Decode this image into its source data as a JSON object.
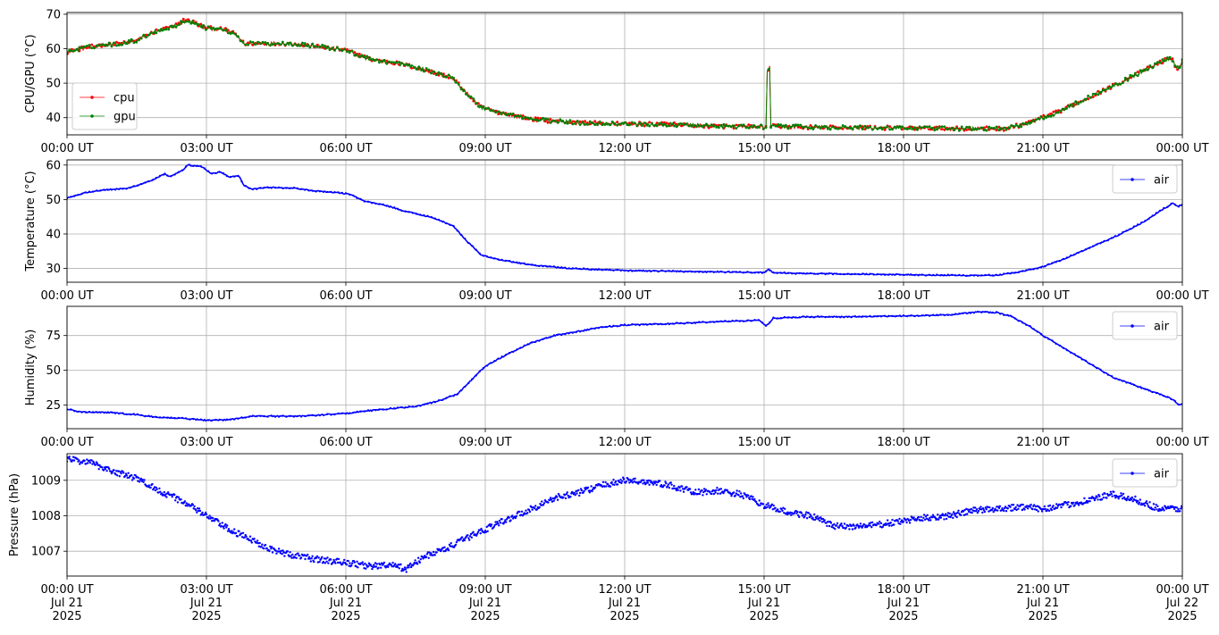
{
  "chart_data": [
    {
      "type": "line",
      "ylabel": "CPU/GPU (°C)",
      "xlim": [
        0,
        24
      ],
      "ylim": [
        35,
        70.5
      ],
      "yticks": [
        40,
        50,
        60,
        70
      ],
      "grid": true,
      "legend": "bottom-left",
      "x_tick_labels": [
        "00:00 UT",
        "03:00 UT",
        "06:00 UT",
        "09:00 UT",
        "12:00 UT",
        "15:00 UT",
        "18:00 UT",
        "21:00 UT",
        "00:00 UT"
      ],
      "series": [
        {
          "name": "cpu",
          "color": "#ff0000",
          "marker": "dot",
          "noise": 0.6,
          "spike": [
            15.05,
            15.12,
            55.5
          ],
          "points": [
            [
              0,
              59
            ],
            [
              0.3,
              60
            ],
            [
              0.7,
              61
            ],
            [
              1.2,
              61.5
            ],
            [
              1.5,
              62.5
            ],
            [
              1.9,
              65
            ],
            [
              2.3,
              66.5
            ],
            [
              2.55,
              68.5
            ],
            [
              2.75,
              67.5
            ],
            [
              3.0,
              66
            ],
            [
              3.4,
              65.5
            ],
            [
              3.65,
              64
            ],
            [
              3.8,
              61.5
            ],
            [
              4.2,
              61.5
            ],
            [
              4.8,
              61.5
            ],
            [
              5.5,
              60.5
            ],
            [
              6.0,
              59.5
            ],
            [
              6.5,
              57
            ],
            [
              7.2,
              55.5
            ],
            [
              7.8,
              53.5
            ],
            [
              8.3,
              51.5
            ],
            [
              8.6,
              47
            ],
            [
              8.9,
              43
            ],
            [
              9.3,
              41.5
            ],
            [
              10,
              39.5
            ],
            [
              11,
              38.5
            ],
            [
              12,
              38.2
            ],
            [
              13,
              38
            ],
            [
              14,
              37.5
            ],
            [
              15.0,
              37.3
            ],
            [
              15.2,
              37.5
            ],
            [
              16,
              37.2
            ],
            [
              18,
              37
            ],
            [
              19,
              36.8
            ],
            [
              20.2,
              36.8
            ],
            [
              20.7,
              38.5
            ],
            [
              21.3,
              41.5
            ],
            [
              22,
              46
            ],
            [
              22.7,
              50.5
            ],
            [
              23.3,
              54.5
            ],
            [
              23.6,
              56.5
            ],
            [
              23.75,
              57.5
            ],
            [
              23.85,
              55
            ],
            [
              23.92,
              54
            ],
            [
              24,
              56.5
            ]
          ]
        },
        {
          "name": "gpu",
          "color": "#008000",
          "marker": "dot",
          "noise": 0.6,
          "spike": [
            15.05,
            15.12,
            55
          ],
          "points": [
            [
              0,
              59
            ],
            [
              0.3,
              60
            ],
            [
              0.7,
              61
            ],
            [
              1.2,
              61.5
            ],
            [
              1.5,
              62.5
            ],
            [
              1.9,
              65
            ],
            [
              2.3,
              66.5
            ],
            [
              2.55,
              68
            ],
            [
              2.75,
              67.5
            ],
            [
              3.0,
              66
            ],
            [
              3.4,
              65.5
            ],
            [
              3.65,
              64
            ],
            [
              3.8,
              61.5
            ],
            [
              4.2,
              61.5
            ],
            [
              4.8,
              61.5
            ],
            [
              5.5,
              60.5
            ],
            [
              6.0,
              59.5
            ],
            [
              6.5,
              57
            ],
            [
              7.2,
              55.5
            ],
            [
              7.8,
              53.5
            ],
            [
              8.3,
              51.5
            ],
            [
              8.6,
              47
            ],
            [
              8.9,
              43
            ],
            [
              9.3,
              41.5
            ],
            [
              10,
              39.5
            ],
            [
              11,
              38.5
            ],
            [
              12,
              38.2
            ],
            [
              13,
              38
            ],
            [
              14,
              37.5
            ],
            [
              15.0,
              37.3
            ],
            [
              15.2,
              37.5
            ],
            [
              16,
              37.2
            ],
            [
              18,
              37
            ],
            [
              19,
              36.8
            ],
            [
              20.2,
              36.8
            ],
            [
              20.7,
              38.5
            ],
            [
              21.3,
              41.5
            ],
            [
              22,
              46
            ],
            [
              22.7,
              50.5
            ],
            [
              23.3,
              54.5
            ],
            [
              23.6,
              56.5
            ],
            [
              23.75,
              57.5
            ],
            [
              23.85,
              55
            ],
            [
              23.92,
              54
            ],
            [
              24,
              56.5
            ]
          ]
        }
      ]
    },
    {
      "type": "line",
      "ylabel": "Temperature (°C)",
      "xlim": [
        0,
        24
      ],
      "ylim": [
        26,
        61.5
      ],
      "yticks": [
        30,
        40,
        50,
        60
      ],
      "grid": true,
      "legend": "top-right",
      "x_tick_labels": [
        "00:00 UT",
        "03:00 UT",
        "06:00 UT",
        "09:00 UT",
        "12:00 UT",
        "15:00 UT",
        "18:00 UT",
        "21:00 UT",
        "00:00 UT"
      ],
      "series": [
        {
          "name": "air",
          "color": "#0000ff",
          "marker": "dot",
          "noise": 0.15,
          "points": [
            [
              0,
              50.5
            ],
            [
              0.4,
              52
            ],
            [
              0.8,
              52.8
            ],
            [
              1.3,
              53.2
            ],
            [
              1.6,
              54.5
            ],
            [
              1.9,
              56
            ],
            [
              2.1,
              57.5
            ],
            [
              2.2,
              56.5
            ],
            [
              2.5,
              58.5
            ],
            [
              2.6,
              60
            ],
            [
              2.9,
              59.5
            ],
            [
              3.1,
              57.5
            ],
            [
              3.3,
              58
            ],
            [
              3.5,
              56.5
            ],
            [
              3.7,
              57
            ],
            [
              3.8,
              54
            ],
            [
              4.0,
              53
            ],
            [
              4.3,
              53.5
            ],
            [
              4.9,
              53.3
            ],
            [
              5.3,
              52.5
            ],
            [
              5.8,
              52
            ],
            [
              6.1,
              51.5
            ],
            [
              6.4,
              49.5
            ],
            [
              6.8,
              48.5
            ],
            [
              7.3,
              46.5
            ],
            [
              7.8,
              45
            ],
            [
              8.3,
              42.5
            ],
            [
              8.6,
              38
            ],
            [
              8.9,
              34
            ],
            [
              9.3,
              32.5
            ],
            [
              10,
              31
            ],
            [
              10.8,
              30
            ],
            [
              12,
              29.4
            ],
            [
              13,
              29.2
            ],
            [
              14,
              29
            ],
            [
              15.0,
              28.8
            ],
            [
              15.1,
              29.8
            ],
            [
              15.2,
              28.7
            ],
            [
              16,
              28.5
            ],
            [
              18,
              28.2
            ],
            [
              19,
              28
            ],
            [
              20,
              28
            ],
            [
              20.5,
              29
            ],
            [
              21,
              30.5
            ],
            [
              21.5,
              33
            ],
            [
              22,
              36
            ],
            [
              22.6,
              39.5
            ],
            [
              23.1,
              43
            ],
            [
              23.5,
              46.5
            ],
            [
              23.8,
              49
            ],
            [
              23.9,
              48
            ],
            [
              24,
              48.5
            ]
          ]
        }
      ]
    },
    {
      "type": "line",
      "ylabel": "Humidity (%)",
      "xlim": [
        0,
        24
      ],
      "ylim": [
        8,
        96
      ],
      "yticks": [
        25,
        50,
        75
      ],
      "grid": true,
      "legend": "top-right",
      "x_tick_labels": [
        "00:00 UT",
        "03:00 UT",
        "06:00 UT",
        "09:00 UT",
        "12:00 UT",
        "15:00 UT",
        "18:00 UT",
        "21:00 UT",
        "00:00 UT"
      ],
      "series": [
        {
          "name": "air",
          "color": "#0000ff",
          "marker": "dot",
          "noise": 0.4,
          "points": [
            [
              0,
              22
            ],
            [
              0.3,
              20
            ],
            [
              1,
              19.5
            ],
            [
              1.5,
              18
            ],
            [
              2,
              16
            ],
            [
              2.5,
              15.5
            ],
            [
              3,
              14
            ],
            [
              3.5,
              14.5
            ],
            [
              4,
              17
            ],
            [
              5,
              17
            ],
            [
              6,
              19
            ],
            [
              6.5,
              21
            ],
            [
              7,
              22.5
            ],
            [
              7.5,
              24
            ],
            [
              8,
              28
            ],
            [
              8.4,
              33
            ],
            [
              8.7,
              43
            ],
            [
              9,
              53
            ],
            [
              9.5,
              62
            ],
            [
              10,
              70
            ],
            [
              10.5,
              75
            ],
            [
              11,
              78
            ],
            [
              11.5,
              81
            ],
            [
              12,
              82.5
            ],
            [
              13,
              83.5
            ],
            [
              14,
              85
            ],
            [
              14.9,
              86
            ],
            [
              15.05,
              82
            ],
            [
              15.2,
              87.5
            ],
            [
              16,
              88.5
            ],
            [
              17,
              88.5
            ],
            [
              18,
              89
            ],
            [
              19,
              90
            ],
            [
              19.6,
              92
            ],
            [
              20,
              91.5
            ],
            [
              20.3,
              89
            ],
            [
              20.7,
              82
            ],
            [
              21,
              75
            ],
            [
              21.5,
              65
            ],
            [
              22,
              55
            ],
            [
              22.5,
              45
            ],
            [
              23,
              39
            ],
            [
              23.5,
              33
            ],
            [
              23.8,
              29
            ],
            [
              23.92,
              25
            ],
            [
              24,
              26
            ]
          ]
        }
      ]
    },
    {
      "type": "scatter",
      "ylabel": "Pressure (hPa)",
      "xlim": [
        0,
        24
      ],
      "ylim": [
        1006.3,
        1009.75
      ],
      "yticks": [
        1007,
        1008,
        1009
      ],
      "grid": true,
      "legend": "top-right",
      "x_tick_labels": [
        "00:00 UT\nJul 21\n2025",
        "03:00 UT\nJul 21\n2025",
        "06:00 UT\nJul 21\n2025",
        "09:00 UT\nJul 21\n2025",
        "12:00 UT\nJul 21\n2025",
        "15:00 UT\nJul 21\n2025",
        "18:00 UT\nJul 21\n2025",
        "21:00 UT\nJul 21\n2025",
        "00:00 UT\nJul 22\n2025"
      ],
      "series": [
        {
          "name": "air",
          "color": "#0000ff",
          "marker": "dot",
          "noise": 0.09,
          "points": [
            [
              0,
              1009.6
            ],
            [
              0.5,
              1009.5
            ],
            [
              1,
              1009.25
            ],
            [
              1.5,
              1009.05
            ],
            [
              2,
              1008.7
            ],
            [
              2.5,
              1008.4
            ],
            [
              3,
              1008
            ],
            [
              3.5,
              1007.6
            ],
            [
              4,
              1007.3
            ],
            [
              4.5,
              1007
            ],
            [
              5,
              1006.85
            ],
            [
              5.5,
              1006.75
            ],
            [
              6,
              1006.68
            ],
            [
              6.5,
              1006.58
            ],
            [
              7,
              1006.6
            ],
            [
              7.3,
              1006.5
            ],
            [
              7.7,
              1006.85
            ],
            [
              8.2,
              1007.1
            ],
            [
              8.8,
              1007.5
            ],
            [
              9.3,
              1007.8
            ],
            [
              10,
              1008.2
            ],
            [
              10.5,
              1008.5
            ],
            [
              11,
              1008.65
            ],
            [
              11.5,
              1008.85
            ],
            [
              12,
              1009
            ],
            [
              12.5,
              1008.95
            ],
            [
              13,
              1008.85
            ],
            [
              13.5,
              1008.65
            ],
            [
              14,
              1008.7
            ],
            [
              14.5,
              1008.6
            ],
            [
              15,
              1008.3
            ],
            [
              15.5,
              1008.1
            ],
            [
              16,
              1008
            ],
            [
              16.5,
              1007.7
            ],
            [
              17,
              1007.7
            ],
            [
              17.5,
              1007.75
            ],
            [
              18,
              1007.85
            ],
            [
              18.5,
              1007.95
            ],
            [
              19,
              1008
            ],
            [
              19.5,
              1008.15
            ],
            [
              20,
              1008.2
            ],
            [
              20.5,
              1008.25
            ],
            [
              21,
              1008.2
            ],
            [
              21.5,
              1008.3
            ],
            [
              22,
              1008.45
            ],
            [
              22.5,
              1008.6
            ],
            [
              23,
              1008.45
            ],
            [
              23.5,
              1008.2
            ],
            [
              24,
              1008.2
            ]
          ]
        }
      ]
    }
  ]
}
